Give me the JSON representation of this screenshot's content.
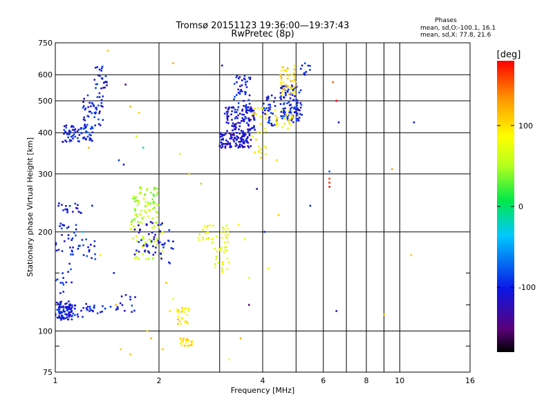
{
  "title": {
    "line1": "Tromsø 20151123 19:36:00—19:37:43",
    "line2": "RwPretec (8p)"
  },
  "stats": {
    "heading": "Phases",
    "line_o": "mean, sd,O:-100.1, 16.1",
    "line_x": "mean, sd,X:  77.8, 21.6"
  },
  "chart_data": {
    "type": "scatter",
    "xlabel": "Frequency [MHz]",
    "ylabel": "Stationary phase Virtual Height [km]",
    "x_scale": "log",
    "y_scale": "log",
    "xlim": [
      1,
      16
    ],
    "ylim": [
      75,
      750
    ],
    "x_ticks": [
      1,
      2,
      4,
      6,
      8,
      10,
      16
    ],
    "x_minor_ticks": [
      3,
      5,
      7,
      9
    ],
    "y_ticks": [
      75,
      100,
      200,
      300,
      400,
      500,
      600,
      750
    ],
    "y_minor_ticks": [
      90,
      120,
      150
    ],
    "grid": true,
    "colorbar": {
      "label": "[deg]",
      "min": -180,
      "max": 180,
      "ticks": [
        -100,
        0,
        100
      ],
      "colors": [
        "#000000",
        "#5a007a",
        "#0a18e6",
        "#00c8ff",
        "#00e84a",
        "#b4ff1e",
        "#ffff00",
        "#ff9600",
        "#ff0000"
      ]
    },
    "clusters": [
      {
        "f": [
          1.0,
          1.12
        ],
        "h": [
          108,
          123
        ],
        "phase": -105,
        "n": 90
      },
      {
        "f": [
          1.12,
          1.3
        ],
        "h": [
          110,
          122
        ],
        "phase": -102,
        "n": 25
      },
      {
        "f": [
          1.32,
          1.45
        ],
        "h": [
          113,
          120
        ],
        "phase": -100,
        "n": 6
      },
      {
        "f": [
          1.5,
          1.72
        ],
        "h": [
          114,
          130
        ],
        "phase": -100,
        "n": 15
      },
      {
        "f": [
          1.0,
          1.12
        ],
        "h": [
          128,
          155
        ],
        "phase": -100,
        "n": 12
      },
      {
        "f": [
          1.02,
          1.2
        ],
        "h": [
          225,
          245
        ],
        "phase": -100,
        "n": 18
      },
      {
        "f": [
          1.0,
          1.15
        ],
        "h": [
          170,
          215
        ],
        "phase": -100,
        "n": 30
      },
      {
        "f": [
          1.15,
          1.32
        ],
        "h": [
          165,
          190
        ],
        "phase": -100,
        "n": 18
      },
      {
        "f": [
          1.05,
          1.3
        ],
        "h": [
          375,
          425
        ],
        "phase": -98,
        "n": 70
      },
      {
        "f": [
          1.2,
          1.38
        ],
        "h": [
          420,
          520
        ],
        "phase": -100,
        "n": 45
      },
      {
        "f": [
          1.3,
          1.42
        ],
        "h": [
          520,
          640
        ],
        "phase": -100,
        "n": 25
      },
      {
        "f": [
          1.68,
          2.0
        ],
        "h": [
          230,
          275
        ],
        "phase": 50,
        "n": 55
      },
      {
        "f": [
          1.65,
          2.05
        ],
        "h": [
          165,
          230
        ],
        "phase": 60,
        "n": 70
      },
      {
        "f": [
          1.7,
          2.1
        ],
        "h": [
          170,
          215
        ],
        "phase": -110,
        "n": 45
      },
      {
        "f": [
          2.0,
          2.2
        ],
        "h": [
          160,
          205
        ],
        "phase": -100,
        "n": 12
      },
      {
        "f": [
          2.25,
          2.45
        ],
        "h": [
          105,
          118
        ],
        "phase": 95,
        "n": 25
      },
      {
        "f": [
          2.3,
          2.5
        ],
        "h": [
          90,
          95
        ],
        "phase": 100,
        "n": 25
      },
      {
        "f": [
          2.6,
          2.9
        ],
        "h": [
          185,
          210
        ],
        "phase": 80,
        "n": 20
      },
      {
        "f": [
          2.9,
          3.2
        ],
        "h": [
          150,
          210
        ],
        "phase": 75,
        "n": 40
      },
      {
        "f": [
          3.0,
          3.7
        ],
        "h": [
          360,
          400
        ],
        "phase": -115,
        "n": 110
      },
      {
        "f": [
          3.1,
          3.8
        ],
        "h": [
          400,
          480
        ],
        "phase": -110,
        "n": 110
      },
      {
        "f": [
          3.3,
          3.7
        ],
        "h": [
          480,
          600
        ],
        "phase": -100,
        "n": 40
      },
      {
        "f": [
          3.7,
          4.1
        ],
        "h": [
          330,
          480
        ],
        "phase": 90,
        "n": 30
      },
      {
        "f": [
          4.0,
          4.4
        ],
        "h": [
          420,
          520
        ],
        "phase": -100,
        "n": 35
      },
      {
        "f": [
          4.5,
          5.2
        ],
        "h": [
          430,
          560
        ],
        "phase": -100,
        "n": 110
      },
      {
        "f": [
          4.5,
          5.0
        ],
        "h": [
          520,
          640
        ],
        "phase": 100,
        "n": 45
      },
      {
        "f": [
          4.3,
          4.9
        ],
        "h": [
          410,
          470
        ],
        "phase": 85,
        "n": 25
      },
      {
        "f": [
          5.1,
          5.5
        ],
        "h": [
          590,
          650
        ],
        "phase": -100,
        "n": 10
      }
    ],
    "scatter_points": [
      {
        "f": 1.42,
        "h": 710,
        "phase": 110
      },
      {
        "f": 1.6,
        "h": 560,
        "phase": -140
      },
      {
        "f": 1.65,
        "h": 480,
        "phase": 120
      },
      {
        "f": 1.72,
        "h": 390,
        "phase": 70
      },
      {
        "f": 1.75,
        "h": 460,
        "phase": 110
      },
      {
        "f": 1.8,
        "h": 360,
        "phase": -20
      },
      {
        "f": 1.53,
        "h": 330,
        "phase": -90
      },
      {
        "f": 1.25,
        "h": 360,
        "phase": 120
      },
      {
        "f": 2.2,
        "h": 650,
        "phase": 120
      },
      {
        "f": 2.3,
        "h": 345,
        "phase": 60
      },
      {
        "f": 2.45,
        "h": 300,
        "phase": 110
      },
      {
        "f": 2.65,
        "h": 280,
        "phase": 40
      },
      {
        "f": 3.05,
        "h": 640,
        "phase": -100
      },
      {
        "f": 3.4,
        "h": 210,
        "phase": 90
      },
      {
        "f": 3.55,
        "h": 190,
        "phase": 70
      },
      {
        "f": 3.65,
        "h": 145,
        "phase": 80
      },
      {
        "f": 3.85,
        "h": 270,
        "phase": -130
      },
      {
        "f": 3.9,
        "h": 350,
        "phase": 100
      },
      {
        "f": 4.05,
        "h": 200,
        "phase": -100
      },
      {
        "f": 4.15,
        "h": 155,
        "phase": 90
      },
      {
        "f": 4.4,
        "h": 330,
        "phase": 100
      },
      {
        "f": 4.45,
        "h": 225,
        "phase": 110
      },
      {
        "f": 5.5,
        "h": 240,
        "phase": -100
      },
      {
        "f": 6.4,
        "h": 570,
        "phase": 150
      },
      {
        "f": 6.55,
        "h": 500,
        "phase": 180
      },
      {
        "f": 6.65,
        "h": 430,
        "phase": -100
      },
      {
        "f": 6.25,
        "h": 305,
        "phase": -80
      },
      {
        "f": 6.25,
        "h": 290,
        "phase": 160
      },
      {
        "f": 6.25,
        "h": 282,
        "phase": 170
      },
      {
        "f": 6.25,
        "h": 274,
        "phase": 175
      },
      {
        "f": 6.55,
        "h": 115,
        "phase": -120
      },
      {
        "f": 9.0,
        "h": 112,
        "phase": 110
      },
      {
        "f": 9.5,
        "h": 310,
        "phase": 130
      },
      {
        "f": 10.8,
        "h": 170,
        "phase": 110
      },
      {
        "f": 11.0,
        "h": 430,
        "phase": -100
      },
      {
        "f": 1.55,
        "h": 88,
        "phase": 110
      },
      {
        "f": 1.65,
        "h": 85,
        "phase": 110
      },
      {
        "f": 1.85,
        "h": 100,
        "phase": 100
      },
      {
        "f": 1.9,
        "h": 95,
        "phase": 120
      },
      {
        "f": 2.05,
        "h": 88,
        "phase": 110
      },
      {
        "f": 3.2,
        "h": 82,
        "phase": 70
      },
      {
        "f": 3.45,
        "h": 95,
        "phase": 120
      },
      {
        "f": 3.65,
        "h": 120,
        "phase": -150
      },
      {
        "f": 1.35,
        "h": 170,
        "phase": 90
      },
      {
        "f": 1.2,
        "h": 200,
        "phase": -40
      },
      {
        "f": 1.48,
        "h": 150,
        "phase": -100
      },
      {
        "f": 1.1,
        "h": 160,
        "phase": -100
      },
      {
        "f": 1.28,
        "h": 240,
        "phase": -100
      },
      {
        "f": 1.58,
        "h": 320,
        "phase": -100
      },
      {
        "f": 2.15,
        "h": 115,
        "phase": 100
      },
      {
        "f": 2.2,
        "h": 125,
        "phase": 80
      },
      {
        "f": 2.1,
        "h": 140,
        "phase": 110
      },
      {
        "f": 1.5,
        "h": 120,
        "phase": 120
      },
      {
        "f": 1.05,
        "h": 140,
        "phase": -90
      }
    ]
  }
}
